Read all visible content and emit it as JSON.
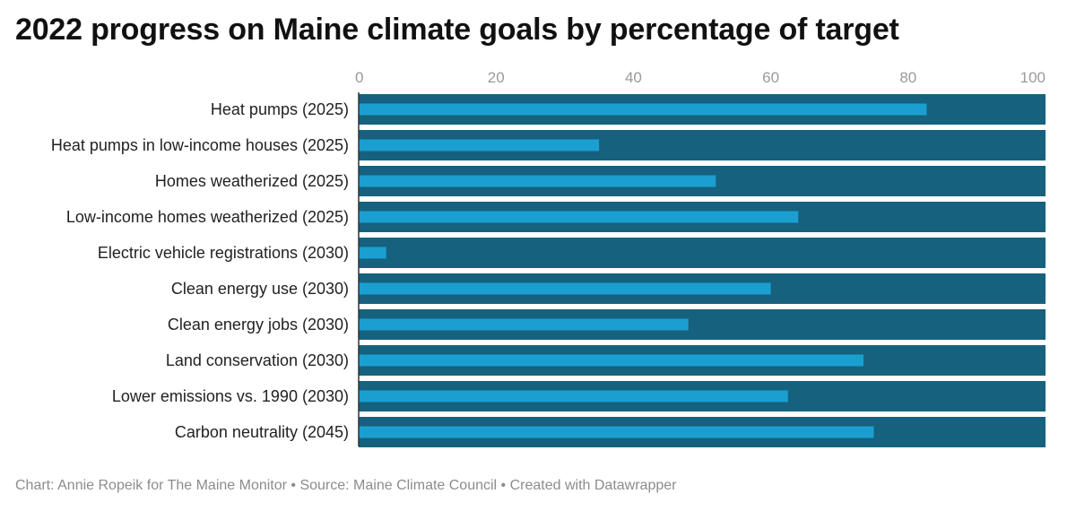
{
  "title": "2022 progress on Maine climate goals by percentage of target",
  "footer": "Chart: Annie Ropeik for The Maine Monitor • Source: Maine Climate Council • Created with Datawrapper",
  "colors": {
    "background_bar": "#16617e",
    "value_bar": "#1b9fd0",
    "axis_line": "#333333"
  },
  "chart_data": {
    "type": "bar",
    "orientation": "horizontal",
    "title": "2022 progress on Maine climate goals by percentage of target",
    "xlim": [
      0,
      100
    ],
    "x_ticks": [
      "0",
      "20",
      "40",
      "60",
      "80",
      "100"
    ],
    "x_tick_values": [
      0,
      20,
      40,
      60,
      80,
      100
    ],
    "target": 100,
    "categories": [
      "Heat pumps (2025)",
      "Heat pumps in low-income houses (2025)",
      "Homes weatherized (2025)",
      "Low-income homes weatherized (2025)",
      "Electric vehicle registrations (2030)",
      "Clean energy use (2030)",
      "Clean energy jobs (2030)",
      "Land conservation (2030)",
      "Lower emissions vs. 1990 (2030)",
      "Carbon neutrality (2045)"
    ],
    "values": [
      82.7,
      35,
      52,
      64,
      4,
      60,
      48,
      73.5,
      62.5,
      75
    ],
    "grid": false,
    "legend": "none"
  }
}
